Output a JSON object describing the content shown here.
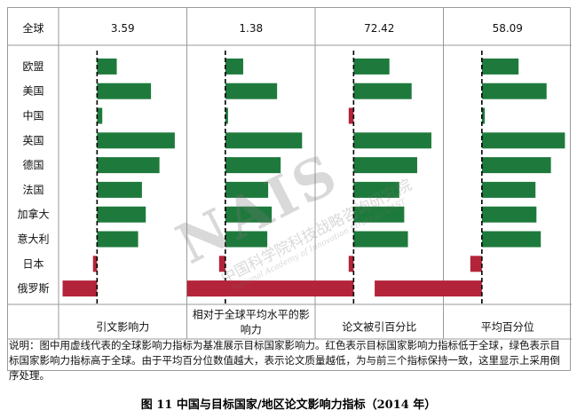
{
  "header": {
    "label": "全球"
  },
  "chart_data": {
    "type": "bar",
    "orientation": "horizontal",
    "baseline_style": "dashed vertical line = global value",
    "categories": [
      "欧盟",
      "美国",
      "中国",
      "英国",
      "德国",
      "法国",
      "加拿大",
      "意大利",
      "日本",
      "俄罗斯"
    ],
    "panels": [
      {
        "label": "引文影响力",
        "global_value": "3.59",
        "diff_from_global": [
          0.72,
          1.97,
          0.19,
          2.84,
          2.28,
          1.64,
          1.78,
          1.5,
          -0.15,
          -1.26
        ],
        "scale_max_abs": 3.0
      },
      {
        "label": "相对于全球平均水平的影响力",
        "global_value": "1.38",
        "diff_from_global": [
          0.2,
          0.58,
          0.03,
          0.86,
          0.62,
          0.48,
          0.52,
          0.47,
          -0.07,
          -0.43
        ],
        "scale_max_abs": 0.92
      },
      {
        "label": "论文被引百分比",
        "global_value": "72.42",
        "diff_from_global": [
          5.8,
          9.4,
          -0.8,
          12.6,
          10.3,
          7.4,
          8.2,
          8.8,
          -0.8,
          -25.0
        ],
        "scale_max_abs": 13.3
      },
      {
        "label": "平均百分位",
        "global_value": "58.09",
        "diff_from_global": [
          -7.6,
          -13.4,
          -0.6,
          -17.2,
          -14.3,
          -11.1,
          -11.3,
          -12.2,
          2.4,
          22.2
        ],
        "scale_max_abs": 17.0,
        "inverted": true
      }
    ],
    "colors": {
      "above_global": "#1e7a3c",
      "below_global": "#b3243a",
      "baseline": "#000000"
    }
  },
  "caption": "说明：图中用虚线代表的全球影响力指标为基准展示目标国家影响力。红色表示目标国家影响力指标低于全球，绿色表示目标国家影响力指标高于全球。由于平均百分位数值越大，表示论文质量越低，为与前三个指标保持一致，这里显示上采用倒序处理。",
  "figure_title": "图 11   中国与目标国家/地区论文影响力指标（2014 年）",
  "watermark": {
    "mark": "NAIS",
    "cn": "中国科学院科技战略咨询研究院",
    "en": "National Academy of Innovation Strategy, CAST"
  }
}
